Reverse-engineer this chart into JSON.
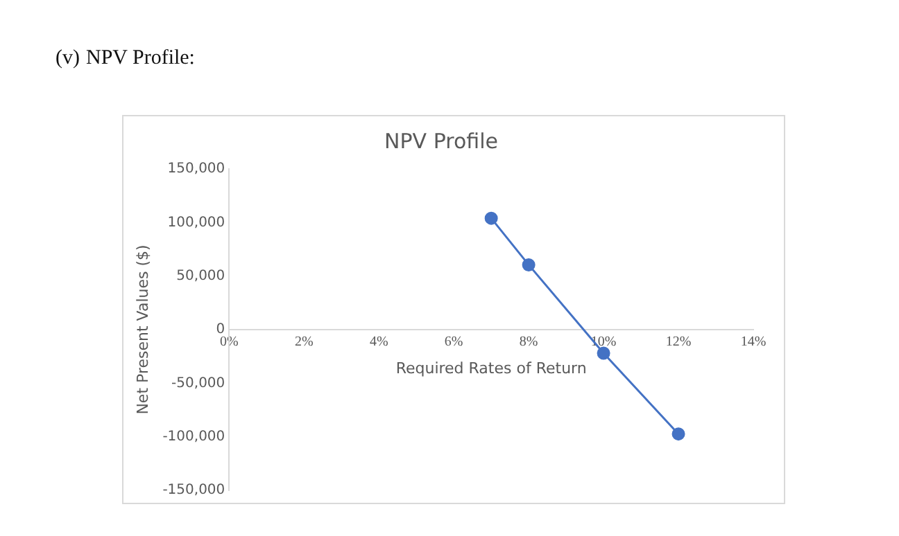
{
  "chart_data": {
    "type": "line",
    "title": "NPV Profile",
    "xlabel": "Required Rates of Return",
    "ylabel": "Net Present Values ($)",
    "annotations": [
      "(v)",
      "NPV Profile:"
    ],
    "x": [
      7,
      8,
      10,
      12
    ],
    "series": [
      {
        "color": "#4472c4",
        "values": [
          104000,
          60500,
          -22000,
          -97400
        ]
      }
    ],
    "xlim": [
      0,
      14
    ],
    "xticks": [
      {
        "value": 0,
        "label": "0%"
      },
      {
        "value": 2,
        "label": "2%"
      },
      {
        "value": 4,
        "label": "4%"
      },
      {
        "value": 6,
        "label": "6%"
      },
      {
        "value": 8,
        "label": "8%"
      },
      {
        "value": 10,
        "label": "10%"
      },
      {
        "value": 12,
        "label": "12%"
      },
      {
        "value": 14,
        "label": "14%"
      }
    ],
    "ylim": [
      -150000,
      150000
    ],
    "yticks": [
      {
        "value": -150000,
        "label": "-150,000"
      },
      {
        "value": -100000,
        "label": "-100,000"
      },
      {
        "value": -50000,
        "label": "-50,000"
      },
      {
        "value": 0,
        "label": "0"
      },
      {
        "value": 50000,
        "label": "50,000"
      },
      {
        "value": 100000,
        "label": "100,000"
      },
      {
        "value": 150000,
        "label": "150,000"
      }
    ],
    "grid": false,
    "legend": false,
    "marker": "circle",
    "line_style": "solid"
  }
}
